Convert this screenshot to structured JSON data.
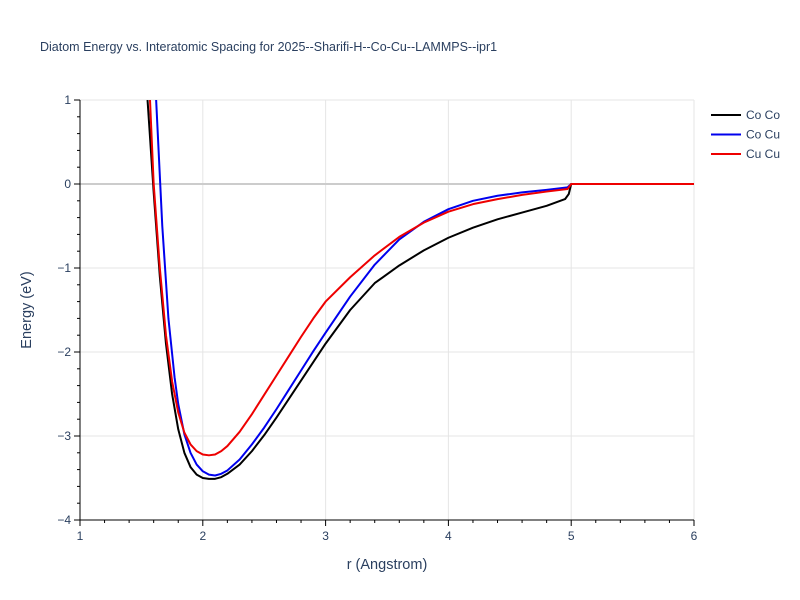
{
  "chart_data": {
    "type": "line",
    "title": "Diatom Energy vs. Interatomic Spacing for 2025--Sharifi-H--Co-Cu--LAMMPS--ipr1",
    "xlabel": "r (Angstrom)",
    "ylabel": "Energy (eV)",
    "xlim": [
      1,
      6
    ],
    "ylim": [
      -4,
      1
    ],
    "xticks": [
      1,
      2,
      3,
      4,
      5,
      6
    ],
    "yticks": [
      -4,
      -3,
      -2,
      -1,
      0,
      1
    ],
    "xtick_labels": [
      "1",
      "2",
      "3",
      "4",
      "5",
      "6"
    ],
    "ytick_labels": [
      "−4",
      "−3",
      "−2",
      "−1",
      "0",
      "1"
    ],
    "grid": true,
    "legend_position": "top-right",
    "series": [
      {
        "name": "Co Co",
        "color": "#000000",
        "x": [
          1.55,
          1.6,
          1.65,
          1.7,
          1.75,
          1.8,
          1.85,
          1.9,
          1.95,
          2.0,
          2.05,
          2.1,
          2.15,
          2.2,
          2.3,
          2.4,
          2.5,
          2.6,
          2.7,
          2.8,
          2.9,
          3.0,
          3.2,
          3.4,
          3.6,
          3.8,
          4.0,
          4.2,
          4.4,
          4.6,
          4.8,
          4.95,
          4.98,
          5.0,
          5.5,
          6.0
        ],
        "y": [
          1.0,
          -0.1,
          -1.1,
          -1.9,
          -2.5,
          -2.92,
          -3.2,
          -3.37,
          -3.46,
          -3.5,
          -3.51,
          -3.51,
          -3.49,
          -3.45,
          -3.34,
          -3.18,
          -2.99,
          -2.78,
          -2.56,
          -2.34,
          -2.12,
          -1.9,
          -1.5,
          -1.18,
          -0.97,
          -0.79,
          -0.64,
          -0.52,
          -0.42,
          -0.34,
          -0.26,
          -0.18,
          -0.12,
          0.0,
          0.0,
          0.0
        ]
      },
      {
        "name": "Co Cu",
        "color": "#0000ee",
        "x": [
          1.62,
          1.67,
          1.72,
          1.77,
          1.8,
          1.85,
          1.9,
          1.95,
          2.0,
          2.05,
          2.1,
          2.15,
          2.2,
          2.3,
          2.4,
          2.5,
          2.6,
          2.7,
          2.8,
          2.9,
          3.0,
          3.2,
          3.4,
          3.6,
          3.8,
          4.0,
          4.2,
          4.4,
          4.6,
          4.8,
          4.97,
          5.0,
          5.5,
          6.0
        ],
        "y": [
          1.0,
          -0.5,
          -1.6,
          -2.3,
          -2.62,
          -2.98,
          -3.2,
          -3.34,
          -3.42,
          -3.46,
          -3.47,
          -3.45,
          -3.41,
          -3.28,
          -3.1,
          -2.9,
          -2.68,
          -2.45,
          -2.22,
          -1.99,
          -1.77,
          -1.34,
          -0.96,
          -0.66,
          -0.45,
          -0.3,
          -0.2,
          -0.14,
          -0.1,
          -0.07,
          -0.04,
          0.0,
          0.0,
          0.0
        ]
      },
      {
        "name": "Cu Cu",
        "color": "#ee0000",
        "x": [
          1.57,
          1.6,
          1.65,
          1.7,
          1.75,
          1.8,
          1.85,
          1.9,
          1.95,
          2.0,
          2.05,
          2.1,
          2.15,
          2.2,
          2.3,
          2.4,
          2.5,
          2.6,
          2.7,
          2.8,
          2.9,
          3.0,
          3.2,
          3.4,
          3.6,
          3.8,
          4.0,
          4.2,
          4.4,
          4.6,
          4.8,
          4.97,
          5.0,
          5.5,
          6.0
        ],
        "y": [
          1.0,
          0.0,
          -1.0,
          -1.8,
          -2.35,
          -2.72,
          -2.96,
          -3.1,
          -3.18,
          -3.22,
          -3.23,
          -3.22,
          -3.18,
          -3.12,
          -2.95,
          -2.74,
          -2.51,
          -2.28,
          -2.05,
          -1.82,
          -1.6,
          -1.4,
          -1.11,
          -0.85,
          -0.63,
          -0.46,
          -0.33,
          -0.24,
          -0.18,
          -0.13,
          -0.09,
          -0.06,
          0.0,
          0.0,
          0.0
        ]
      }
    ]
  }
}
